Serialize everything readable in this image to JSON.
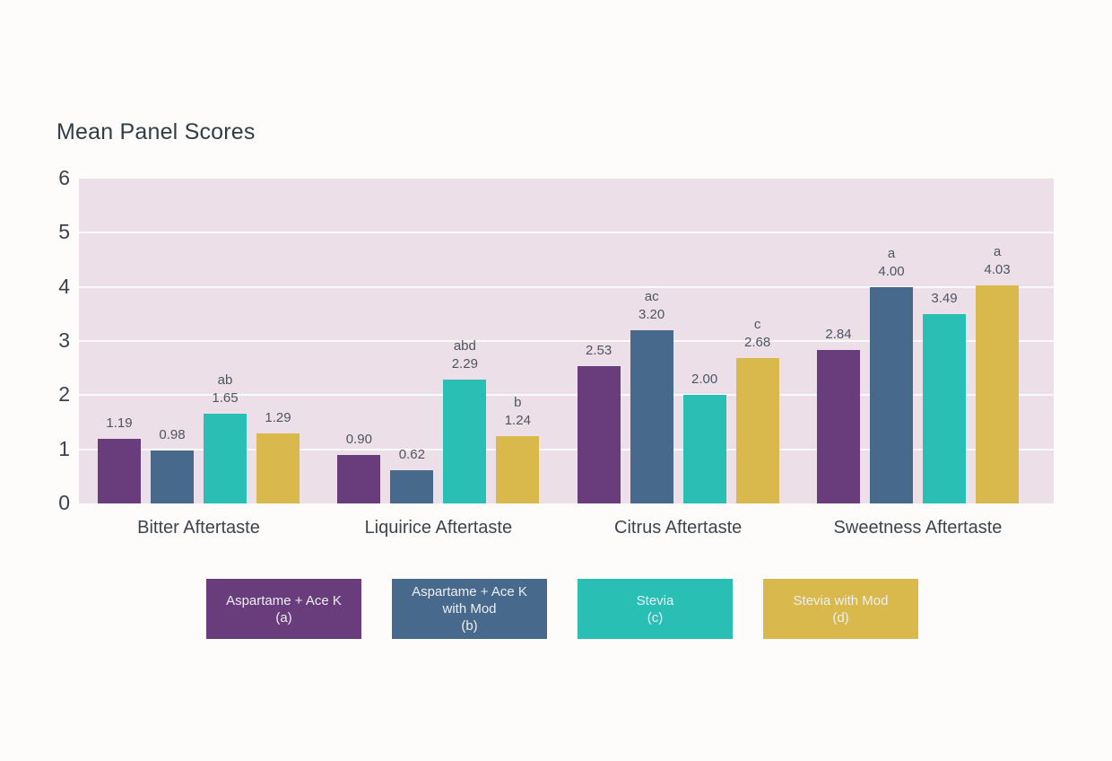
{
  "page": {
    "background": "#fdfcfa",
    "plot_background": "#ecdfe8",
    "gridline_color": "#fcfaf8",
    "text_color": "#3c454e"
  },
  "chart_data": {
    "type": "bar",
    "title": "Mean Panel Scores",
    "xlabel": "",
    "ylabel": "",
    "ylim": [
      0,
      6
    ],
    "yticks": [
      "0",
      "1",
      "2",
      "3",
      "4",
      "5",
      "6"
    ],
    "grid": "horizontal",
    "legend_position": "bottom",
    "categories": [
      "Bitter Aftertaste",
      "Liquirice Aftertaste",
      "Citrus Aftertaste",
      "Sweetness Aftertaste"
    ],
    "series": [
      {
        "name": "Aspartame + Ace K (a)",
        "legend_lines": [
          "Aspartame + Ace K",
          "(a)"
        ],
        "color": "#693d7c",
        "values": [
          1.19,
          0.9,
          2.53,
          2.84
        ],
        "value_labels": [
          "1.19",
          "0.90",
          "2.53",
          "2.84"
        ],
        "significance_letters": [
          "",
          "",
          "",
          ""
        ]
      },
      {
        "name": "Aspartame + Ace K with Mod (b)",
        "legend_lines": [
          "Aspartame + Ace K",
          "with Mod",
          "(b)"
        ],
        "color": "#47698c",
        "values": [
          0.98,
          0.62,
          3.2,
          4.0
        ],
        "value_labels": [
          "0.98",
          "0.62",
          "3.20",
          "4.00"
        ],
        "significance_letters": [
          "",
          "",
          "ac",
          "a"
        ]
      },
      {
        "name": "Stevia (c)",
        "legend_lines": [
          "Stevia",
          "(c)"
        ],
        "color": "#2abfb4",
        "values": [
          1.65,
          2.29,
          2.0,
          3.49
        ],
        "value_labels": [
          "1.65",
          "2.29",
          "2.00",
          "3.49"
        ],
        "significance_letters": [
          "ab",
          "abd",
          "",
          ""
        ]
      },
      {
        "name": "Stevia with Mod (d)",
        "legend_lines": [
          "Stevia with Mod",
          "(d)"
        ],
        "color": "#d9b84c",
        "values": [
          1.29,
          1.24,
          2.68,
          4.03
        ],
        "value_labels": [
          "1.29",
          "1.24",
          "2.68",
          "4.03"
        ],
        "significance_letters": [
          "",
          "b",
          "c",
          "a"
        ]
      }
    ]
  }
}
